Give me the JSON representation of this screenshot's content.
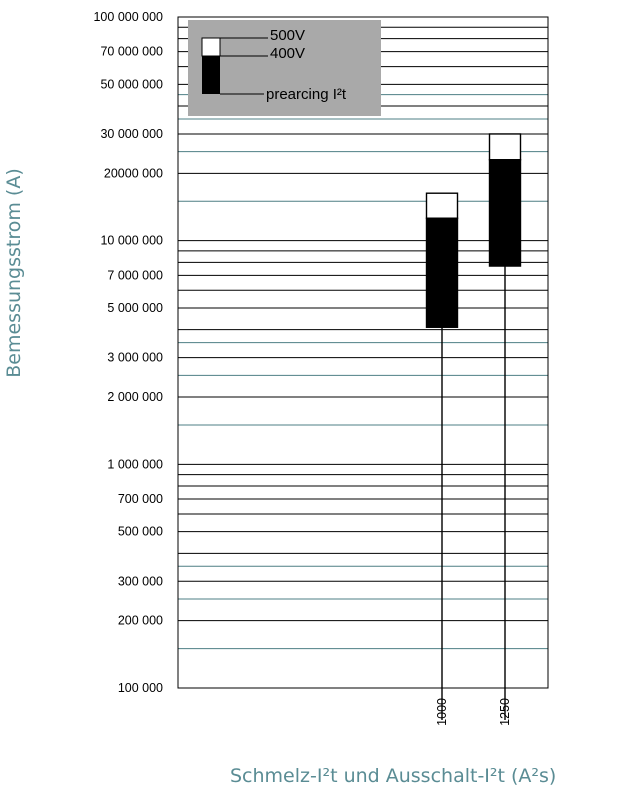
{
  "chart_data": {
    "type": "bar",
    "subtype": "floating-range-stacked",
    "scale": "log",
    "xlabel": "Schmelz-I²t und Ausschalt-I²t (A²s)",
    "ylabel": "Bemessungsstrom (A)",
    "ylim": [
      100000,
      100000000
    ],
    "y_ticks": [
      {
        "value": 100000000,
        "label": "100 000 000"
      },
      {
        "value": 70000000,
        "label": "70 000 000"
      },
      {
        "value": 50000000,
        "label": "50 000 000"
      },
      {
        "value": 30000000,
        "label": "30 000 000"
      },
      {
        "value": 20000000,
        "label": "20000 000"
      },
      {
        "value": 10000000,
        "label": "10 000 000"
      },
      {
        "value": 7000000,
        "label": "7 000 000"
      },
      {
        "value": 5000000,
        "label": "5 000 000"
      },
      {
        "value": 3000000,
        "label": "3 000 000"
      },
      {
        "value": 2000000,
        "label": "2 000 000"
      },
      {
        "value": 1000000,
        "label": "1 000 000"
      },
      {
        "value": 700000,
        "label": "700 000"
      },
      {
        "value": 500000,
        "label": "500 000"
      },
      {
        "value": 300000,
        "label": "300 000"
      },
      {
        "value": 200000,
        "label": "200 000"
      },
      {
        "value": 100000,
        "label": "100 000"
      }
    ],
    "categories": [
      "1000",
      "1250"
    ],
    "series": [
      {
        "name": "prearcing I²t",
        "color": "#000000",
        "ranges": [
          [
            4100000,
            12600000
          ],
          [
            7700000,
            23000000
          ]
        ]
      },
      {
        "name": "400V",
        "color": "#ffffff",
        "ranges": [
          [
            12600000,
            16300000
          ],
          [
            23000000,
            30000000
          ]
        ]
      },
      {
        "name": "500V",
        "color": "#ffffff",
        "ranges": [
          [
            12600000,
            16300000
          ],
          [
            23000000,
            30000000
          ]
        ]
      }
    ],
    "legend": {
      "position": "top-left",
      "entries": [
        "500V",
        "400V",
        "prearcing I²t"
      ],
      "background": "#a9a9a9"
    },
    "grid": true,
    "colors": {
      "grid_major": "#000000",
      "grid_minor": "#4e7f84",
      "axis_title": "#5a8c94"
    }
  }
}
